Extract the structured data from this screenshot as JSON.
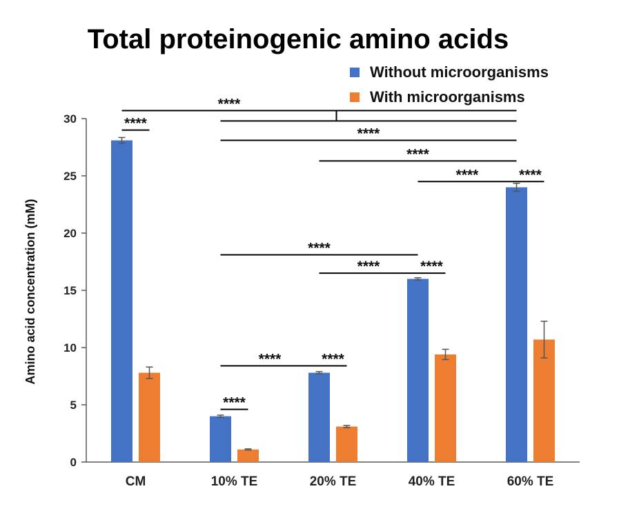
{
  "chart_data": {
    "type": "bar",
    "title": "Total proteinogenic amino acids",
    "xlabel": "",
    "ylabel": "Amino acid concentration (mM)",
    "ylim": [
      0,
      30
    ],
    "yticks": [
      "0",
      "5",
      "10",
      "15",
      "20",
      "25",
      "30"
    ],
    "categories": [
      "CM",
      "10% TE",
      "20% TE",
      "40% TE",
      "60% TE"
    ],
    "series": [
      {
        "name": "Without microorganisms",
        "color": "#4472C4",
        "values": [
          28.1,
          4.0,
          7.8,
          16.0,
          24.0
        ],
        "errors": [
          0.25,
          0.1,
          0.1,
          0.1,
          0.35
        ]
      },
      {
        "name": "With microorganisms",
        "color": "#ED7D31",
        "values": [
          7.8,
          1.1,
          3.1,
          9.4,
          10.7
        ],
        "errors": [
          0.5,
          0.05,
          0.1,
          0.45,
          1.6
        ]
      }
    ],
    "legend_position": "top-right",
    "significance_label": "****",
    "significance_brackets": [
      {
        "level": 30.7,
        "from": [
          "CM",
          0
        ],
        "to": [
          "60% TE",
          0
        ],
        "branch_to": [
          "20% TE",
          0
        ],
        "label": "****"
      },
      {
        "level": 29.8,
        "from": [
          "10% TE",
          0
        ],
        "to": [
          "60% TE",
          0
        ],
        "label": ""
      },
      {
        "level": 28.1,
        "from": [
          "10% TE",
          0
        ],
        "to": [
          "60% TE",
          0
        ],
        "label": "****"
      },
      {
        "level": 26.3,
        "from": [
          "20% TE",
          0
        ],
        "to": [
          "60% TE",
          0
        ],
        "label": "****"
      },
      {
        "level": 24.5,
        "from": [
          "40% TE",
          0
        ],
        "to": [
          "60% TE",
          0
        ],
        "label": "****"
      },
      {
        "level": 29.0,
        "from": [
          "CM",
          0
        ],
        "to": [
          "CM",
          1
        ],
        "label": "****"
      },
      {
        "level": 24.5,
        "from": [
          "60% TE",
          0
        ],
        "to": [
          "60% TE",
          1
        ],
        "label": "****"
      },
      {
        "level": 18.1,
        "from": [
          "10% TE",
          0
        ],
        "to": [
          "40% TE",
          0
        ],
        "label": "****"
      },
      {
        "level": 16.5,
        "from": [
          "20% TE",
          0
        ],
        "to": [
          "40% TE",
          0
        ],
        "label": "****"
      },
      {
        "level": 16.5,
        "from": [
          "40% TE",
          0
        ],
        "to": [
          "40% TE",
          1
        ],
        "label": "****"
      },
      {
        "level": 8.4,
        "from": [
          "10% TE",
          0
        ],
        "to": [
          "20% TE",
          0
        ],
        "label": "****"
      },
      {
        "level": 8.4,
        "from": [
          "20% TE",
          0
        ],
        "to": [
          "20% TE",
          1
        ],
        "label": "****"
      },
      {
        "level": 4.6,
        "from": [
          "10% TE",
          0
        ],
        "to": [
          "10% TE",
          1
        ],
        "label": "****"
      }
    ]
  }
}
